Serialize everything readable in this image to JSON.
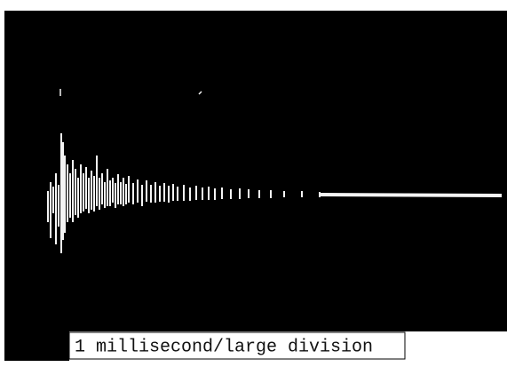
{
  "caption": "1 millisecond/large division"
}
